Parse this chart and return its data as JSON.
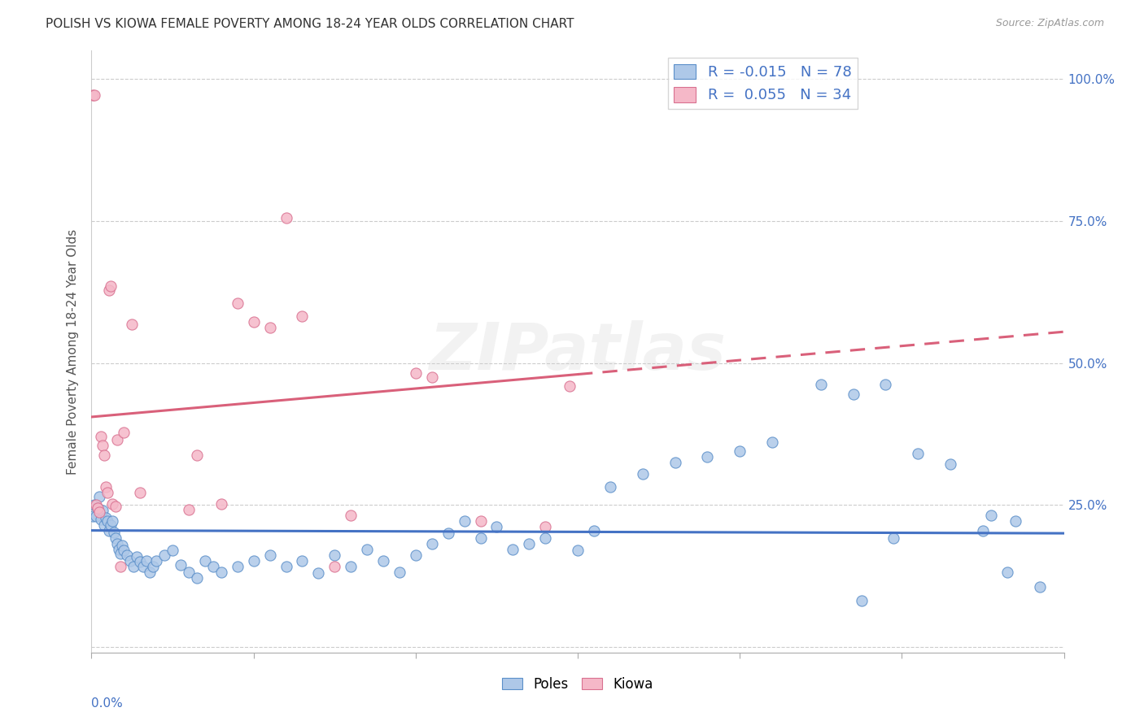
{
  "title": "POLISH VS KIOWA FEMALE POVERTY AMONG 18-24 YEAR OLDS CORRELATION CHART",
  "source": "Source: ZipAtlas.com",
  "ylabel": "Female Poverty Among 18-24 Year Olds",
  "xlim": [
    0.0,
    0.6
  ],
  "ylim": [
    -0.01,
    1.05
  ],
  "yticks": [
    0.0,
    0.25,
    0.5,
    0.75,
    1.0
  ],
  "ytick_labels_right": [
    "",
    "25.0%",
    "50.0%",
    "75.0%",
    "100.0%"
  ],
  "xtick_positions": [
    0.0,
    0.1,
    0.2,
    0.3,
    0.4,
    0.5,
    0.6
  ],
  "poles_R": -0.015,
  "poles_N": 78,
  "kiowa_R": 0.055,
  "kiowa_N": 34,
  "poles_color": "#aec8e8",
  "kiowa_color": "#f5b8c8",
  "poles_edge_color": "#5b8fc9",
  "kiowa_edge_color": "#d97090",
  "poles_line_color": "#4472c4",
  "kiowa_line_color": "#d9607a",
  "poles_line_y0": 0.205,
  "poles_line_y1": 0.2,
  "kiowa_line_y0": 0.405,
  "kiowa_line_y1": 0.555,
  "watermark_text": "ZIPatlas",
  "background_color": "#ffffff",
  "poles_x": [
    0.001,
    0.002,
    0.003,
    0.004,
    0.005,
    0.006,
    0.007,
    0.008,
    0.009,
    0.01,
    0.011,
    0.012,
    0.013,
    0.014,
    0.015,
    0.016,
    0.017,
    0.018,
    0.019,
    0.02,
    0.022,
    0.024,
    0.026,
    0.028,
    0.03,
    0.032,
    0.034,
    0.036,
    0.038,
    0.04,
    0.045,
    0.05,
    0.055,
    0.06,
    0.065,
    0.07,
    0.075,
    0.08,
    0.09,
    0.1,
    0.11,
    0.12,
    0.13,
    0.14,
    0.15,
    0.16,
    0.17,
    0.18,
    0.19,
    0.2,
    0.21,
    0.22,
    0.23,
    0.24,
    0.25,
    0.26,
    0.27,
    0.28,
    0.3,
    0.31,
    0.32,
    0.34,
    0.36,
    0.38,
    0.4,
    0.42,
    0.45,
    0.47,
    0.49,
    0.51,
    0.53,
    0.55,
    0.57,
    0.495,
    0.475,
    0.555,
    0.565,
    0.585
  ],
  "poles_y": [
    0.23,
    0.25,
    0.23,
    0.245,
    0.265,
    0.225,
    0.24,
    0.215,
    0.228,
    0.222,
    0.205,
    0.215,
    0.222,
    0.202,
    0.192,
    0.182,
    0.172,
    0.165,
    0.178,
    0.17,
    0.162,
    0.152,
    0.142,
    0.158,
    0.15,
    0.142,
    0.152,
    0.132,
    0.142,
    0.152,
    0.162,
    0.17,
    0.145,
    0.132,
    0.122,
    0.152,
    0.142,
    0.132,
    0.142,
    0.152,
    0.162,
    0.142,
    0.152,
    0.13,
    0.162,
    0.142,
    0.172,
    0.152,
    0.132,
    0.162,
    0.182,
    0.2,
    0.222,
    0.192,
    0.212,
    0.172,
    0.182,
    0.192,
    0.17,
    0.205,
    0.282,
    0.305,
    0.325,
    0.335,
    0.345,
    0.36,
    0.462,
    0.445,
    0.462,
    0.34,
    0.322,
    0.205,
    0.222,
    0.192,
    0.082,
    0.232,
    0.132,
    0.105
  ],
  "kiowa_x": [
    0.001,
    0.002,
    0.003,
    0.004,
    0.005,
    0.006,
    0.007,
    0.008,
    0.009,
    0.01,
    0.011,
    0.012,
    0.013,
    0.015,
    0.016,
    0.018,
    0.02,
    0.025,
    0.03,
    0.06,
    0.065,
    0.08,
    0.09,
    0.1,
    0.11,
    0.12,
    0.13,
    0.15,
    0.16,
    0.2,
    0.21,
    0.24,
    0.28,
    0.295
  ],
  "kiowa_y": [
    0.972,
    0.972,
    0.25,
    0.245,
    0.238,
    0.37,
    0.355,
    0.338,
    0.282,
    0.272,
    0.628,
    0.635,
    0.252,
    0.248,
    0.365,
    0.142,
    0.378,
    0.568,
    0.272,
    0.242,
    0.338,
    0.252,
    0.605,
    0.572,
    0.562,
    0.755,
    0.582,
    0.142,
    0.232,
    0.482,
    0.475,
    0.222,
    0.212,
    0.46
  ]
}
